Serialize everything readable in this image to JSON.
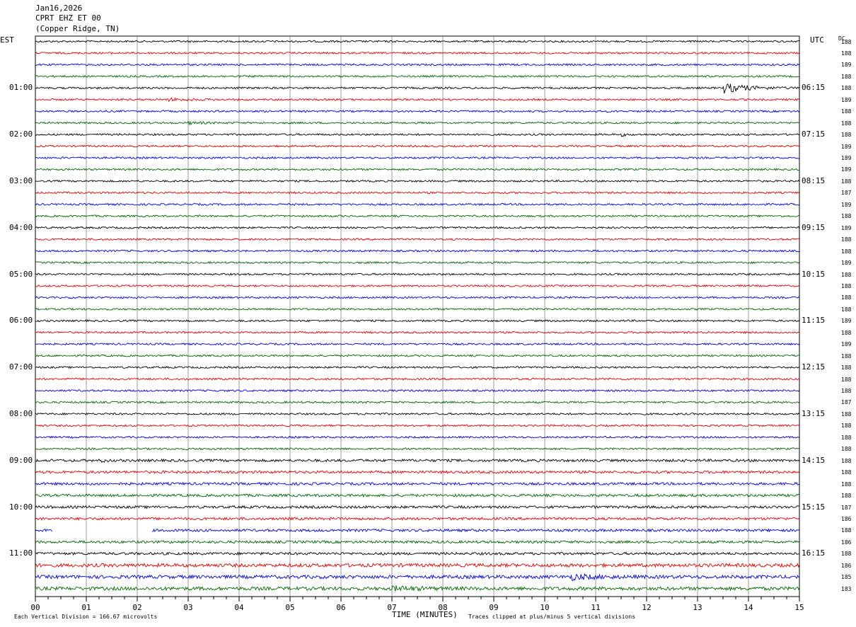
{
  "header": {
    "date": "Jan16,2026",
    "station": "CPRT EHZ ET 00",
    "location": "(Copper Ridge, TN)"
  },
  "left_zone": "EST",
  "right_zone": "UTC",
  "dc_label": "DC",
  "footer": {
    "scale": "Each Vertical Division =  166.67 microvolts",
    "xlabel": "TIME (MINUTES)",
    "clip": "Traces clipped at plus/minus 5 vertical divisions"
  },
  "colors": {
    "black": "#000000",
    "red": "#dd0000",
    "blue": "#0000cc",
    "green": "#006600",
    "grid": "#808080"
  },
  "chart_data": {
    "type": "line",
    "xlabel": "TIME (MINUTES)",
    "xlim": [
      0,
      15
    ],
    "x_ticks": [
      "00",
      "01",
      "02",
      "03",
      "04",
      "05",
      "06",
      "07",
      "08",
      "09",
      "10",
      "11",
      "12",
      "13",
      "14",
      "15"
    ],
    "hour_labels_left": [
      "01:00",
      "02:00",
      "03:00",
      "04:00",
      "05:00",
      "06:00",
      "07:00",
      "08:00",
      "09:00",
      "10:00",
      "11:00"
    ],
    "hour_labels_right": [
      "06:15",
      "07:15",
      "08:15",
      "09:15",
      "10:15",
      "11:15",
      "12:15",
      "13:15",
      "14:15",
      "15:15",
      "16:15"
    ],
    "trace_colors": [
      "black",
      "red",
      "blue",
      "green"
    ],
    "dc_values": [
      "188",
      "188",
      "189",
      "188",
      "188",
      "189",
      "188",
      "188",
      "188",
      "189",
      "189",
      "189",
      "188",
      "187",
      "189",
      "188",
      "189",
      "188",
      "188",
      "189",
      "188",
      "188",
      "188",
      "188",
      "189",
      "188",
      "189",
      "188",
      "188",
      "188",
      "188",
      "187",
      "188",
      "188",
      "188",
      "188",
      "188",
      "188",
      "188",
      "188",
      "187",
      "186",
      "188",
      "186",
      "188",
      "186",
      "185",
      "183"
    ],
    "gap": {
      "trace": 42,
      "from": 0.33,
      "to": 2.28
    },
    "events": [
      {
        "trace": 4,
        "at": 13.5,
        "end": 15.0,
        "amp": 7.0
      },
      {
        "trace": 5,
        "at": 2.6,
        "end": 4.2,
        "amp": 1.5
      },
      {
        "trace": 7,
        "at": 3.0,
        "end": 4.0,
        "amp": 1.4
      },
      {
        "trace": 8,
        "at": 11.5,
        "end": 11.8,
        "amp": 2.0
      },
      {
        "trace": 36,
        "at": 1.3,
        "end": 1.6,
        "amp": 1.8
      },
      {
        "trace": 46,
        "at": 10.5,
        "end": 12.0,
        "amp": 3.5
      },
      {
        "trace": 47,
        "at": 7.0,
        "end": 8.5,
        "amp": 2.5
      }
    ]
  }
}
